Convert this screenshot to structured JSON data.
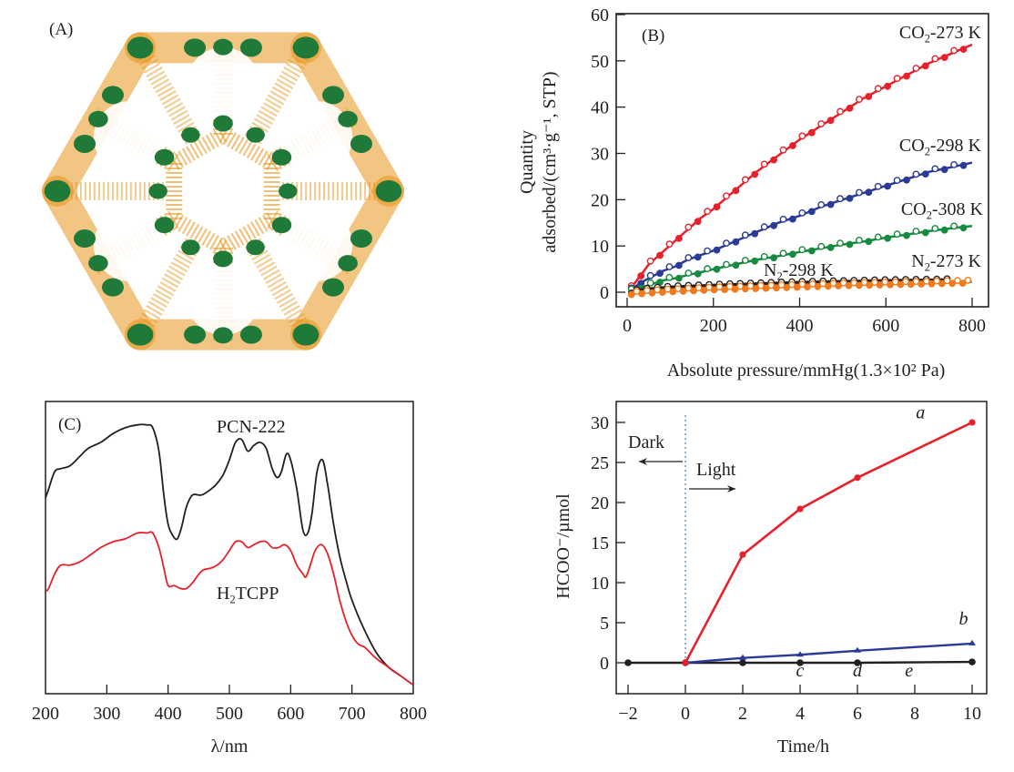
{
  "panels": {
    "A": {
      "label": "(A)",
      "description": "PCN-222 framework structure with hexagonal and triangular channels"
    },
    "B": {
      "label": "(B)"
    },
    "C": {
      "label": "(C)"
    },
    "D": {
      "label": ""
    }
  },
  "colors": {
    "red": "#e8202a",
    "blue": "#2b3a97",
    "green": "#168a3e",
    "orange": "#f07a1e",
    "black": "#231f20",
    "framework_green": "#1f7a3a",
    "framework_orange": "#e8961e"
  },
  "chart_data": [
    {
      "id": "B",
      "type": "scatter",
      "title": "",
      "xlabel": "Absolute pressure/mmHg(1.3×10² Pa)",
      "ylabel_line1": "Quantity",
      "ylabel_line2": "adsorbed/(cm³·g⁻¹, STP)",
      "xlim": [
        -15,
        830
      ],
      "ylim": [
        -3.5,
        60
      ],
      "xticks": [
        0,
        200,
        400,
        600,
        800
      ],
      "yticks": [
        0,
        10,
        20,
        30,
        40,
        50,
        60
      ],
      "series": [
        {
          "name": "CO2-273 K",
          "label_main": "CO",
          "label_sub": "2",
          "label_rest": "-273 K",
          "color": "red",
          "x": [
            10,
            30,
            50,
            80,
            110,
            140,
            170,
            200,
            250,
            300,
            350,
            400,
            450,
            500,
            550,
            600,
            650,
            700,
            750,
            800
          ],
          "y": [
            1,
            3.5,
            6,
            8.5,
            11,
            13.5,
            16,
            18,
            22,
            26,
            29.5,
            33,
            36,
            39,
            42,
            44.5,
            47,
            49.5,
            51.5,
            53.5
          ]
        },
        {
          "name": "CO2-298 K",
          "label_main": "CO",
          "label_sub": "2",
          "label_rest": "-298 K",
          "color": "blue",
          "x": [
            10,
            30,
            50,
            80,
            110,
            140,
            170,
            200,
            250,
            300,
            350,
            400,
            450,
            500,
            550,
            600,
            650,
            700,
            750,
            800
          ],
          "y": [
            0.5,
            2,
            3,
            4.5,
            5.5,
            7,
            8,
            9,
            11,
            13,
            15,
            16.5,
            18.5,
            20,
            21.5,
            23,
            24.5,
            26,
            27,
            28
          ]
        },
        {
          "name": "CO2-308 K",
          "label_main": "CO",
          "label_sub": "2",
          "label_rest": "-308 K",
          "color": "green",
          "x": [
            10,
            30,
            50,
            80,
            110,
            140,
            170,
            200,
            250,
            300,
            350,
            400,
            450,
            500,
            550,
            600,
            650,
            700,
            750,
            800
          ],
          "y": [
            0.3,
            1,
            1.5,
            2.5,
            3,
            3.7,
            4.3,
            5,
            6,
            7,
            7.8,
            8.7,
            9.5,
            10.3,
            11,
            11.8,
            12.5,
            13.2,
            13.8,
            14.3
          ]
        },
        {
          "name": "N2-298 K",
          "label_main": "N",
          "label_sub": "2",
          "label_rest": "-298 K",
          "color": "black",
          "x": [
            10,
            50,
            100,
            200,
            300,
            400,
            500,
            600,
            700,
            750
          ],
          "y": [
            0,
            0.5,
            0.9,
            1.3,
            1.6,
            1.9,
            2.1,
            2.3,
            2.4,
            2.5
          ]
        },
        {
          "name": "N2-273 K",
          "label_main": "N",
          "label_sub": "2",
          "label_rest": "-273 K",
          "color": "orange",
          "x": [
            10,
            50,
            100,
            200,
            300,
            400,
            500,
            600,
            700,
            800
          ],
          "y": [
            -0.3,
            0,
            0.3,
            0.7,
            1,
            1.3,
            1.6,
            1.8,
            2,
            2.2
          ]
        }
      ]
    },
    {
      "id": "C",
      "type": "line",
      "title": "",
      "xlabel": "λ/nm",
      "ylabel": "",
      "xlim": [
        200,
        800
      ],
      "ylim": [
        0,
        1
      ],
      "xticks": [
        200,
        300,
        400,
        500,
        600,
        700,
        800
      ],
      "series": [
        {
          "name": "PCN-222",
          "color": "black",
          "x": [
            200,
            205,
            215,
            225,
            240,
            255,
            270,
            290,
            310,
            330,
            350,
            365,
            375,
            385,
            393,
            400,
            408,
            415,
            422,
            430,
            440,
            455,
            470,
            480,
            490,
            500,
            510,
            520,
            530,
            540,
            550,
            560,
            570,
            578,
            585,
            593,
            600,
            610,
            620,
            628,
            635,
            643,
            652,
            660,
            670,
            680,
            690,
            700,
            720,
            740,
            760,
            780,
            800
          ],
          "y": [
            0.67,
            0.7,
            0.76,
            0.77,
            0.78,
            0.81,
            0.84,
            0.86,
            0.89,
            0.91,
            0.92,
            0.92,
            0.91,
            0.83,
            0.68,
            0.58,
            0.54,
            0.53,
            0.57,
            0.64,
            0.68,
            0.68,
            0.7,
            0.72,
            0.75,
            0.8,
            0.86,
            0.87,
            0.83,
            0.85,
            0.86,
            0.84,
            0.77,
            0.74,
            0.76,
            0.82,
            0.8,
            0.7,
            0.56,
            0.55,
            0.62,
            0.76,
            0.8,
            0.72,
            0.58,
            0.47,
            0.39,
            0.32,
            0.22,
            0.14,
            0.09,
            0.06,
            0.03
          ]
        },
        {
          "name": "H2TCPP",
          "label_main": "H",
          "label_sub": "2",
          "label_rest": "TCPP",
          "color": "red",
          "x": [
            200,
            205,
            215,
            225,
            240,
            255,
            270,
            290,
            310,
            330,
            350,
            365,
            375,
            385,
            393,
            400,
            410,
            420,
            430,
            440,
            455,
            470,
            480,
            490,
            500,
            510,
            520,
            530,
            540,
            550,
            560,
            570,
            580,
            590,
            600,
            610,
            620,
            625,
            632,
            640,
            650,
            660,
            670,
            680,
            690,
            700,
            710,
            720,
            730,
            740,
            760,
            780,
            800
          ],
          "y": [
            0.35,
            0.36,
            0.41,
            0.44,
            0.44,
            0.45,
            0.47,
            0.5,
            0.52,
            0.53,
            0.55,
            0.55,
            0.55,
            0.5,
            0.43,
            0.37,
            0.37,
            0.36,
            0.36,
            0.38,
            0.42,
            0.43,
            0.44,
            0.46,
            0.49,
            0.52,
            0.52,
            0.5,
            0.51,
            0.52,
            0.52,
            0.5,
            0.5,
            0.51,
            0.49,
            0.44,
            0.41,
            0.4,
            0.44,
            0.49,
            0.51,
            0.48,
            0.41,
            0.32,
            0.25,
            0.2,
            0.17,
            0.16,
            0.14,
            0.12,
            0.09,
            0.06,
            0.03
          ]
        }
      ]
    },
    {
      "id": "D",
      "type": "line",
      "title": "",
      "xlabel": "Time/h",
      "ylabel": "HCOO⁻/µmol",
      "xlim": [
        -2.4,
        10.5
      ],
      "ylim": [
        -3.9,
        33
      ],
      "xticks": [
        -2,
        0,
        2,
        4,
        6,
        8,
        10
      ],
      "xtick_labels": [
        "−2",
        "0",
        "2",
        "4",
        "6",
        "8",
        "10"
      ],
      "yticks": [
        0,
        5,
        10,
        15,
        20,
        25,
        30
      ],
      "divider_x": 0,
      "annotations": {
        "dark": "Dark",
        "light": "Light"
      },
      "series": [
        {
          "name": "a",
          "color": "red",
          "x": [
            0,
            2,
            4,
            6,
            10
          ],
          "y": [
            0,
            13.5,
            19.2,
            23.1,
            30.0
          ]
        },
        {
          "name": "b",
          "color": "blue",
          "x": [
            0,
            2,
            4,
            6,
            10
          ],
          "y": [
            0,
            0.6,
            1.0,
            1.5,
            2.4
          ]
        },
        {
          "name": "c",
          "color": "black",
          "x": [
            -2,
            0,
            2,
            4,
            6,
            10
          ],
          "y": [
            0,
            0,
            0,
            0,
            0,
            0.1
          ]
        },
        {
          "name": "d",
          "color": "black",
          "x": [
            -2,
            0,
            2,
            4,
            6,
            10
          ],
          "y": [
            0,
            0,
            0,
            0,
            0,
            0.1
          ]
        },
        {
          "name": "e",
          "color": "black",
          "x": [
            -2,
            0,
            2,
            4,
            6,
            10
          ],
          "y": [
            0,
            0,
            0,
            0,
            0,
            0.1
          ]
        }
      ],
      "series_labels": [
        {
          "text": "a",
          "x": 8.2,
          "y": 30.5
        },
        {
          "text": "b",
          "x": 9.7,
          "y": 4.8
        },
        {
          "text": "c",
          "x": 4.0,
          "y": -1.7
        },
        {
          "text": "d",
          "x": 6.0,
          "y": -1.7
        },
        {
          "text": "e",
          "x": 7.8,
          "y": -1.7
        }
      ]
    }
  ]
}
